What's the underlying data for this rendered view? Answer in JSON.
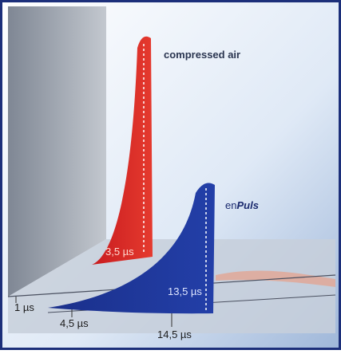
{
  "labels": {
    "compressed_air": "compressed air",
    "en": "en",
    "puls": "Puls",
    "red_duration": "3,5 µs",
    "blue_duration": "13,5 µs"
  },
  "axis": {
    "ticks": [
      "1 µs",
      "4,5 µs",
      "14,5 µs"
    ]
  }
}
